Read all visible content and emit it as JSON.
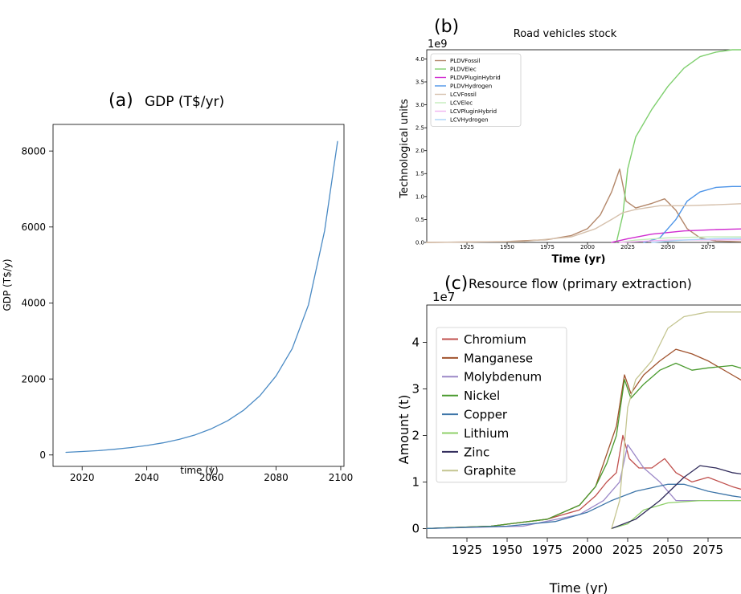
{
  "panels": {
    "a": {
      "letter": "(a)",
      "title": "GDP (T$/yr)",
      "ylabel": "GDP (T$/y)",
      "xlabel": "time (y)"
    },
    "b": {
      "letter": "(b)",
      "title": "Road vehicles stock",
      "ylabel": "Technological units",
      "xlabel": "Time (yr)",
      "exponent": "1e9"
    },
    "c": {
      "letter": "(c)",
      "title": "Resource flow (primary extraction)",
      "ylabel": "Amount (t)",
      "xlabel": "Time (yr)",
      "exponent": "1e7"
    }
  },
  "chart_data": [
    {
      "id": "a",
      "type": "line",
      "title": "GDP (T$/yr)",
      "xlabel": "time (y)",
      "ylabel": "GDP (T$/y)",
      "xlim": [
        2011,
        2101
      ],
      "ylim": [
        -300,
        8700
      ],
      "xticks": [
        2020,
        2040,
        2060,
        2080,
        2100
      ],
      "yticks": [
        0,
        2000,
        4000,
        6000,
        8000
      ],
      "grid": false,
      "series": [
        {
          "color": "#4a8ac4",
          "x": [
            2015,
            2020,
            2025,
            2030,
            2035,
            2040,
            2045,
            2050,
            2055,
            2060,
            2065,
            2070,
            2075,
            2080,
            2085,
            2090,
            2095,
            2099
          ],
          "y": [
            70,
            90,
            115,
            150,
            195,
            250,
            320,
            410,
            530,
            690,
            900,
            1180,
            1560,
            2080,
            2800,
            3950,
            5900,
            8250
          ]
        }
      ]
    },
    {
      "id": "b",
      "type": "line",
      "title": "Road vehicles stock",
      "xlabel": "Time (yr)",
      "ylabel": "Technological units",
      "exponent_label": "1e9",
      "xlim": [
        1900,
        2100
      ],
      "ylim": [
        0,
        4.2
      ],
      "xticks": [
        1925,
        1950,
        1975,
        2000,
        2025,
        2050,
        2075
      ],
      "yticks": [
        0.0,
        0.5,
        1.0,
        1.5,
        2.0,
        2.5,
        3.0,
        3.5,
        4.0
      ],
      "legend": "top-left",
      "series": [
        {
          "name": "PLDVFossil",
          "color": "#b3876a",
          "x": [
            1900,
            1950,
            1975,
            1990,
            2000,
            2008,
            2015,
            2020,
            2024,
            2030,
            2040,
            2048,
            2055,
            2062,
            2070,
            2080,
            2100
          ],
          "y": [
            0.0,
            0.02,
            0.06,
            0.15,
            0.3,
            0.6,
            1.1,
            1.6,
            0.9,
            0.75,
            0.85,
            0.95,
            0.7,
            0.3,
            0.1,
            0.03,
            0.01
          ]
        },
        {
          "name": "PLDVElec",
          "color": "#7fcf6e",
          "x": [
            2018,
            2022,
            2025,
            2030,
            2040,
            2050,
            2060,
            2070,
            2080,
            2090,
            2100
          ],
          "y": [
            0.0,
            0.6,
            1.6,
            2.3,
            2.9,
            3.4,
            3.8,
            4.05,
            4.15,
            4.2,
            4.2
          ]
        },
        {
          "name": "PLDVPluginHybrid",
          "color": "#d02cd0",
          "x": [
            2015,
            2025,
            2040,
            2060,
            2080,
            2100
          ],
          "y": [
            0.0,
            0.08,
            0.18,
            0.25,
            0.28,
            0.3
          ]
        },
        {
          "name": "PLDVHydrogen",
          "color": "#4d94e8",
          "x": [
            2035,
            2045,
            2055,
            2062,
            2070,
            2080,
            2090,
            2100
          ],
          "y": [
            0.0,
            0.1,
            0.5,
            0.9,
            1.1,
            1.2,
            1.22,
            1.22
          ]
        },
        {
          "name": "LCVFossil",
          "color": "#d6c1ad",
          "x": [
            1900,
            1960,
            1990,
            2005,
            2015,
            2022,
            2030,
            2045,
            2060,
            2080,
            2100
          ],
          "y": [
            0.0,
            0.02,
            0.12,
            0.3,
            0.5,
            0.65,
            0.72,
            0.8,
            0.8,
            0.82,
            0.85
          ]
        },
        {
          "name": "LCVElec",
          "color": "#c4ecbb",
          "x": [
            2020,
            2030,
            2050,
            2075,
            2100
          ],
          "y": [
            0.0,
            0.05,
            0.1,
            0.12,
            0.12
          ]
        },
        {
          "name": "LCVPluginHybrid",
          "color": "#f1b3f1",
          "x": [
            2020,
            2050,
            2100
          ],
          "y": [
            0.0,
            0.05,
            0.06
          ]
        },
        {
          "name": "LCVHydrogen",
          "color": "#a9d3f7",
          "x": [
            2040,
            2060,
            2080,
            2100
          ],
          "y": [
            0.0,
            0.05,
            0.08,
            0.09
          ]
        }
      ]
    },
    {
      "id": "c",
      "type": "line",
      "title": "Resource flow (primary extraction)",
      "xlabel": "Time (yr)",
      "ylabel": "Amount (t)",
      "exponent_label": "1e7",
      "xlim": [
        1900,
        2100
      ],
      "ylim": [
        -0.2,
        4.8
      ],
      "xticks": [
        1925,
        1950,
        1975,
        2000,
        2025,
        2050,
        2075
      ],
      "yticks": [
        0,
        1,
        2,
        3,
        4
      ],
      "legend": "top-left",
      "series": [
        {
          "name": "Chromium",
          "color": "#c0504d",
          "x": [
            1900,
            1940,
            1975,
            1995,
            2005,
            2012,
            2018,
            2022,
            2026,
            2032,
            2040,
            2048,
            2055,
            2065,
            2075,
            2090,
            2100
          ],
          "y": [
            0.0,
            0.05,
            0.2,
            0.4,
            0.7,
            1.0,
            1.2,
            2.0,
            1.5,
            1.3,
            1.3,
            1.5,
            1.2,
            1.0,
            1.1,
            0.9,
            0.8
          ]
        },
        {
          "name": "Manganese",
          "color": "#a0522d",
          "x": [
            1900,
            1940,
            1975,
            1995,
            2005,
            2012,
            2018,
            2023,
            2027,
            2035,
            2045,
            2055,
            2065,
            2075,
            2090,
            2100
          ],
          "y": [
            0.0,
            0.05,
            0.2,
            0.5,
            0.9,
            1.6,
            2.2,
            3.3,
            2.9,
            3.3,
            3.6,
            3.85,
            3.75,
            3.6,
            3.3,
            3.1
          ]
        },
        {
          "name": "Molybdenum",
          "color": "#9c88c7",
          "x": [
            1900,
            1960,
            1995,
            2010,
            2020,
            2025,
            2035,
            2045,
            2055,
            2075,
            2100
          ],
          "y": [
            0.0,
            0.05,
            0.3,
            0.6,
            1.0,
            1.8,
            1.3,
            1.0,
            0.6,
            0.6,
            0.6
          ]
        },
        {
          "name": "Nickel",
          "color": "#4a9a2e",
          "x": [
            1900,
            1940,
            1975,
            1995,
            2005,
            2012,
            2018,
            2023,
            2027,
            2035,
            2045,
            2055,
            2065,
            2075,
            2090,
            2100
          ],
          "y": [
            0.0,
            0.05,
            0.2,
            0.5,
            0.9,
            1.4,
            2.0,
            3.2,
            2.8,
            3.1,
            3.4,
            3.55,
            3.4,
            3.45,
            3.5,
            3.4
          ]
        },
        {
          "name": "Copper",
          "color": "#3d75a8",
          "x": [
            1900,
            1950,
            1980,
            2000,
            2015,
            2030,
            2050,
            2060,
            2075,
            2090,
            2100
          ],
          "y": [
            0.0,
            0.05,
            0.15,
            0.35,
            0.6,
            0.8,
            0.95,
            0.95,
            0.8,
            0.7,
            0.65
          ]
        },
        {
          "name": "Lithium",
          "color": "#8fd06a",
          "x": [
            2015,
            2025,
            2035,
            2050,
            2070,
            2100
          ],
          "y": [
            0.0,
            0.1,
            0.4,
            0.55,
            0.6,
            0.6
          ]
        },
        {
          "name": "Zinc",
          "color": "#2f2a5a",
          "x": [
            2015,
            2030,
            2045,
            2060,
            2070,
            2080,
            2090,
            2100
          ],
          "y": [
            0.0,
            0.2,
            0.6,
            1.1,
            1.35,
            1.3,
            1.2,
            1.15
          ]
        },
        {
          "name": "Graphite",
          "color": "#c4c590",
          "x": [
            2015,
            2020,
            2025,
            2030,
            2040,
            2050,
            2060,
            2075,
            2090,
            2100
          ],
          "y": [
            0.0,
            0.6,
            2.6,
            3.2,
            3.6,
            4.3,
            4.55,
            4.65,
            4.65,
            4.65
          ]
        }
      ]
    }
  ]
}
